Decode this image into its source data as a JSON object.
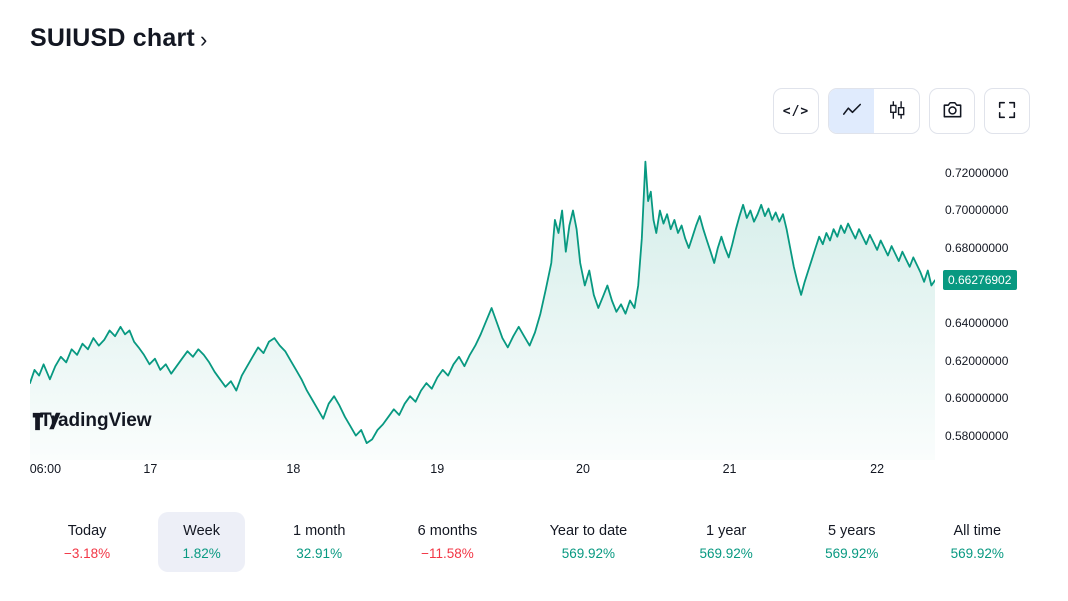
{
  "header": {
    "title": "SUIUSD chart",
    "chevron": "›"
  },
  "toolbar": {
    "code_glyph": "</>",
    "buttons": [
      "code-view",
      "line-chart-type",
      "candlestick-chart-type",
      "screenshot",
      "fullscreen"
    ],
    "selected_chart_type": "line",
    "selected_bg": "#e0ebfd"
  },
  "watermark": {
    "brand": "TradingView"
  },
  "colors": {
    "up": "#089981",
    "down": "#f23645",
    "range_selected_bg": "#edeff7",
    "text": "#131722"
  },
  "chart_data": {
    "type": "area",
    "title": "SUIUSD chart",
    "symbol": "SUIUSD",
    "line_color": "#089981",
    "grid": false,
    "legend": "none",
    "ylim": [
      0.567,
      0.7333
    ],
    "last_price_label": "0.66276902",
    "last_price_value": 0.66276902,
    "y_ticks": [
      {
        "label": "0.72000000",
        "value": 0.72
      },
      {
        "label": "0.70000000",
        "value": 0.7
      },
      {
        "label": "0.68000000",
        "value": 0.68
      },
      {
        "label": "0.64000000",
        "value": 0.64
      },
      {
        "label": "0.62000000",
        "value": 0.62
      },
      {
        "label": "0.60000000",
        "value": 0.6
      },
      {
        "label": "0.58000000",
        "value": 0.58
      }
    ],
    "x_ticks": [
      {
        "label": "06:00",
        "pos": 0.017
      },
      {
        "label": "17",
        "pos": 0.133
      },
      {
        "label": "18",
        "pos": 0.291
      },
      {
        "label": "19",
        "pos": 0.45
      },
      {
        "label": "20",
        "pos": 0.611
      },
      {
        "label": "21",
        "pos": 0.773
      },
      {
        "label": "22",
        "pos": 0.936
      }
    ],
    "series": [
      {
        "name": "SUIUSD",
        "points": [
          [
            0.0,
            0.608
          ],
          [
            0.005,
            0.615
          ],
          [
            0.01,
            0.612
          ],
          [
            0.015,
            0.618
          ],
          [
            0.022,
            0.61
          ],
          [
            0.028,
            0.617
          ],
          [
            0.034,
            0.622
          ],
          [
            0.04,
            0.619
          ],
          [
            0.046,
            0.626
          ],
          [
            0.052,
            0.623
          ],
          [
            0.058,
            0.629
          ],
          [
            0.064,
            0.626
          ],
          [
            0.07,
            0.632
          ],
          [
            0.076,
            0.628
          ],
          [
            0.082,
            0.631
          ],
          [
            0.088,
            0.636
          ],
          [
            0.094,
            0.633
          ],
          [
            0.1,
            0.638
          ],
          [
            0.105,
            0.634
          ],
          [
            0.11,
            0.636
          ],
          [
            0.115,
            0.63
          ],
          [
            0.12,
            0.627
          ],
          [
            0.126,
            0.623
          ],
          [
            0.132,
            0.618
          ],
          [
            0.138,
            0.621
          ],
          [
            0.144,
            0.615
          ],
          [
            0.15,
            0.618
          ],
          [
            0.156,
            0.613
          ],
          [
            0.162,
            0.617
          ],
          [
            0.168,
            0.621
          ],
          [
            0.174,
            0.625
          ],
          [
            0.18,
            0.622
          ],
          [
            0.186,
            0.626
          ],
          [
            0.192,
            0.623
          ],
          [
            0.198,
            0.619
          ],
          [
            0.204,
            0.614
          ],
          [
            0.21,
            0.61
          ],
          [
            0.216,
            0.606
          ],
          [
            0.222,
            0.609
          ],
          [
            0.228,
            0.604
          ],
          [
            0.234,
            0.612
          ],
          [
            0.24,
            0.617
          ],
          [
            0.246,
            0.622
          ],
          [
            0.252,
            0.627
          ],
          [
            0.258,
            0.624
          ],
          [
            0.264,
            0.63
          ],
          [
            0.27,
            0.632
          ],
          [
            0.276,
            0.628
          ],
          [
            0.282,
            0.625
          ],
          [
            0.288,
            0.62
          ],
          [
            0.294,
            0.615
          ],
          [
            0.3,
            0.61
          ],
          [
            0.306,
            0.604
          ],
          [
            0.312,
            0.599
          ],
          [
            0.318,
            0.594
          ],
          [
            0.324,
            0.589
          ],
          [
            0.33,
            0.597
          ],
          [
            0.336,
            0.601
          ],
          [
            0.342,
            0.596
          ],
          [
            0.348,
            0.59
          ],
          [
            0.354,
            0.585
          ],
          [
            0.36,
            0.58
          ],
          [
            0.366,
            0.583
          ],
          [
            0.372,
            0.576
          ],
          [
            0.378,
            0.578
          ],
          [
            0.384,
            0.583
          ],
          [
            0.39,
            0.586
          ],
          [
            0.396,
            0.59
          ],
          [
            0.402,
            0.594
          ],
          [
            0.408,
            0.591
          ],
          [
            0.414,
            0.597
          ],
          [
            0.42,
            0.601
          ],
          [
            0.426,
            0.598
          ],
          [
            0.432,
            0.604
          ],
          [
            0.438,
            0.608
          ],
          [
            0.444,
            0.605
          ],
          [
            0.45,
            0.611
          ],
          [
            0.456,
            0.615
          ],
          [
            0.462,
            0.612
          ],
          [
            0.468,
            0.618
          ],
          [
            0.474,
            0.622
          ],
          [
            0.48,
            0.617
          ],
          [
            0.486,
            0.623
          ],
          [
            0.492,
            0.628
          ],
          [
            0.498,
            0.634
          ],
          [
            0.504,
            0.641
          ],
          [
            0.51,
            0.648
          ],
          [
            0.516,
            0.64
          ],
          [
            0.522,
            0.632
          ],
          [
            0.528,
            0.627
          ],
          [
            0.534,
            0.633
          ],
          [
            0.54,
            0.638
          ],
          [
            0.546,
            0.633
          ],
          [
            0.552,
            0.628
          ],
          [
            0.558,
            0.635
          ],
          [
            0.564,
            0.645
          ],
          [
            0.57,
            0.658
          ],
          [
            0.576,
            0.672
          ],
          [
            0.58,
            0.695
          ],
          [
            0.584,
            0.688
          ],
          [
            0.588,
            0.7
          ],
          [
            0.592,
            0.678
          ],
          [
            0.596,
            0.692
          ],
          [
            0.6,
            0.7
          ],
          [
            0.604,
            0.69
          ],
          [
            0.608,
            0.672
          ],
          [
            0.613,
            0.66
          ],
          [
            0.618,
            0.668
          ],
          [
            0.623,
            0.655
          ],
          [
            0.628,
            0.648
          ],
          [
            0.633,
            0.654
          ],
          [
            0.638,
            0.66
          ],
          [
            0.643,
            0.652
          ],
          [
            0.648,
            0.646
          ],
          [
            0.653,
            0.65
          ],
          [
            0.658,
            0.645
          ],
          [
            0.663,
            0.652
          ],
          [
            0.668,
            0.648
          ],
          [
            0.672,
            0.66
          ],
          [
            0.676,
            0.685
          ],
          [
            0.68,
            0.726
          ],
          [
            0.683,
            0.705
          ],
          [
            0.686,
            0.71
          ],
          [
            0.689,
            0.695
          ],
          [
            0.692,
            0.688
          ],
          [
            0.696,
            0.7
          ],
          [
            0.7,
            0.693
          ],
          [
            0.704,
            0.698
          ],
          [
            0.708,
            0.69
          ],
          [
            0.712,
            0.695
          ],
          [
            0.716,
            0.688
          ],
          [
            0.72,
            0.692
          ],
          [
            0.724,
            0.685
          ],
          [
            0.728,
            0.68
          ],
          [
            0.732,
            0.686
          ],
          [
            0.736,
            0.692
          ],
          [
            0.74,
            0.697
          ],
          [
            0.744,
            0.69
          ],
          [
            0.748,
            0.684
          ],
          [
            0.752,
            0.678
          ],
          [
            0.756,
            0.672
          ],
          [
            0.76,
            0.68
          ],
          [
            0.764,
            0.686
          ],
          [
            0.768,
            0.68
          ],
          [
            0.772,
            0.675
          ],
          [
            0.776,
            0.682
          ],
          [
            0.78,
            0.69
          ],
          [
            0.784,
            0.697
          ],
          [
            0.788,
            0.703
          ],
          [
            0.792,
            0.696
          ],
          [
            0.796,
            0.7
          ],
          [
            0.8,
            0.694
          ],
          [
            0.804,
            0.698
          ],
          [
            0.808,
            0.703
          ],
          [
            0.812,
            0.697
          ],
          [
            0.816,
            0.701
          ],
          [
            0.82,
            0.695
          ],
          [
            0.824,
            0.699
          ],
          [
            0.828,
            0.694
          ],
          [
            0.832,
            0.698
          ],
          [
            0.836,
            0.69
          ],
          [
            0.84,
            0.68
          ],
          [
            0.844,
            0.67
          ],
          [
            0.848,
            0.662
          ],
          [
            0.852,
            0.655
          ],
          [
            0.856,
            0.662
          ],
          [
            0.86,
            0.668
          ],
          [
            0.864,
            0.674
          ],
          [
            0.868,
            0.68
          ],
          [
            0.872,
            0.686
          ],
          [
            0.876,
            0.682
          ],
          [
            0.88,
            0.688
          ],
          [
            0.884,
            0.684
          ],
          [
            0.888,
            0.69
          ],
          [
            0.892,
            0.686
          ],
          [
            0.896,
            0.692
          ],
          [
            0.9,
            0.688
          ],
          [
            0.904,
            0.693
          ],
          [
            0.908,
            0.689
          ],
          [
            0.912,
            0.685
          ],
          [
            0.916,
            0.69
          ],
          [
            0.92,
            0.686
          ],
          [
            0.924,
            0.682
          ],
          [
            0.928,
            0.687
          ],
          [
            0.932,
            0.683
          ],
          [
            0.936,
            0.679
          ],
          [
            0.94,
            0.684
          ],
          [
            0.944,
            0.68
          ],
          [
            0.948,
            0.676
          ],
          [
            0.952,
            0.681
          ],
          [
            0.956,
            0.677
          ],
          [
            0.96,
            0.673
          ],
          [
            0.964,
            0.678
          ],
          [
            0.968,
            0.674
          ],
          [
            0.972,
            0.67
          ],
          [
            0.976,
            0.675
          ],
          [
            0.98,
            0.671
          ],
          [
            0.984,
            0.667
          ],
          [
            0.988,
            0.662
          ],
          [
            0.992,
            0.668
          ],
          [
            0.996,
            0.66
          ],
          [
            1.0,
            0.66277
          ]
        ]
      }
    ]
  },
  "ranges": [
    {
      "label": "Today",
      "value": "−3.18%",
      "direction": "down",
      "selected": false
    },
    {
      "label": "Week",
      "value": "1.82%",
      "direction": "up",
      "selected": true
    },
    {
      "label": "1 month",
      "value": "32.91%",
      "direction": "up",
      "selected": false
    },
    {
      "label": "6 months",
      "value": "−11.58%",
      "direction": "down",
      "selected": false
    },
    {
      "label": "Year to date",
      "value": "569.92%",
      "direction": "up",
      "selected": false
    },
    {
      "label": "1 year",
      "value": "569.92%",
      "direction": "up",
      "selected": false
    },
    {
      "label": "5 years",
      "value": "569.92%",
      "direction": "up",
      "selected": false
    },
    {
      "label": "All time",
      "value": "569.92%",
      "direction": "up",
      "selected": false
    }
  ]
}
